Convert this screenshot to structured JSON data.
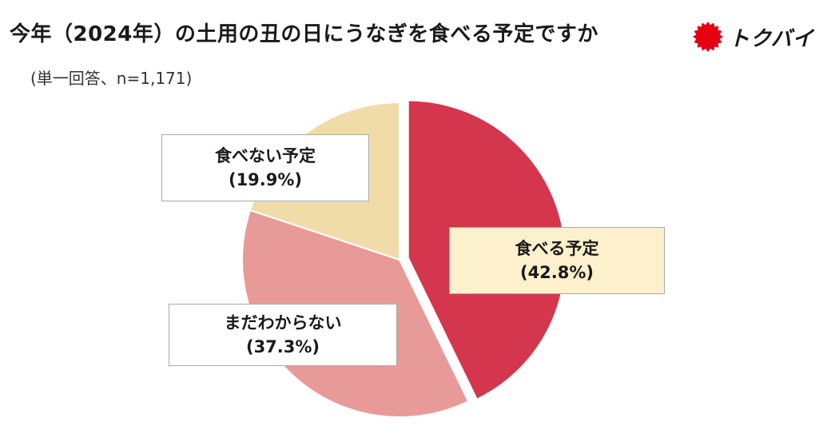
{
  "title": "今年（2024年）の土用の丑の日にうなぎを食べる予定ですか",
  "subtitle": "(単一回答、n=1,171)",
  "brand": {
    "name": "トクバイ",
    "icon": "red-sun-burst-icon",
    "color": "#e60012"
  },
  "chart_data": {
    "type": "pie",
    "title": "今年（2024年）の土用の丑の日にうなぎを食べる予定ですか",
    "subtitle": "(単一回答、n=1,171)",
    "slices": [
      {
        "label": "食べる予定",
        "value": 42.8,
        "value_text": "(42.8%)",
        "color": "#d4364e",
        "exploded": true
      },
      {
        "label": "まだわからない",
        "value": 37.3,
        "value_text": "(37.3%)",
        "color": "#e89a98"
      },
      {
        "label": "食べない予定",
        "value": 19.9,
        "value_text": "(19.9%)",
        "color": "#f0dca8"
      }
    ],
    "start": "12 o'clock",
    "direction": "clockwise",
    "legend": "none"
  }
}
